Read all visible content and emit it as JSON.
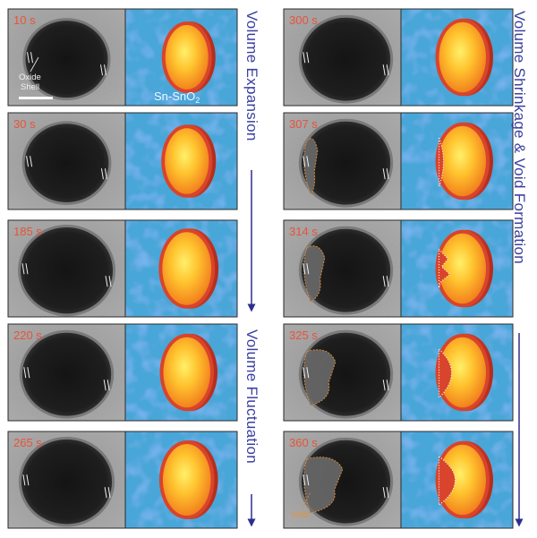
{
  "panels": [
    {
      "id": "p1",
      "col": "left",
      "row": 0,
      "time": "10 s",
      "void": 0,
      "scale": 1.0,
      "dots": false
    },
    {
      "id": "p2",
      "col": "left",
      "row": 1,
      "time": "30 s",
      "void": 0,
      "scale": 1.02,
      "dots": false
    },
    {
      "id": "p3",
      "col": "left",
      "row": 2,
      "time": "185 s",
      "void": 0,
      "scale": 1.12,
      "dots": false
    },
    {
      "id": "p4",
      "col": "left",
      "row": 3,
      "time": "220 s",
      "void": 0,
      "scale": 1.08,
      "dots": false
    },
    {
      "id": "p5",
      "col": "left",
      "row": 4,
      "time": "265 s",
      "void": 0,
      "scale": 1.1,
      "dots": false
    },
    {
      "id": "p6",
      "col": "right",
      "row": 0,
      "time": "300 s",
      "void": 0,
      "scale": 1.08,
      "dots": false
    },
    {
      "id": "p7",
      "col": "right",
      "row": 1,
      "time": "307 s",
      "void": 1,
      "scale": 1.08,
      "dots": true
    },
    {
      "id": "p8",
      "col": "right",
      "row": 2,
      "time": "314 s",
      "void": 2,
      "scale": 1.08,
      "dots": true
    },
    {
      "id": "p9",
      "col": "right",
      "row": 3,
      "time": "325 s",
      "void": 3,
      "scale": 1.08,
      "dots": true
    },
    {
      "id": "p10",
      "col": "right",
      "row": 4,
      "time": "360 s",
      "void": 4,
      "scale": 1.08,
      "dots": true
    }
  ],
  "labels": {
    "volume_expansion": "Volume Expansion",
    "volume_fluctuation": "Volume Fluctuation",
    "shrinkage": "Volume Shrinkage & Void Formation",
    "oxide_shell_line1": "Oxide",
    "oxide_shell_line2": "Shell",
    "material": "Sn-SnO",
    "material_sub": "2",
    "void": "Void"
  },
  "colors": {
    "timestamp": "#e8533a",
    "arrow": "#2d2f8f",
    "shell": "#d8442c",
    "core_center": "#ffe14d",
    "core_edge": "#f58a1f",
    "background_blue": "#4aa6d8",
    "void_outline": "#d88a3a"
  }
}
